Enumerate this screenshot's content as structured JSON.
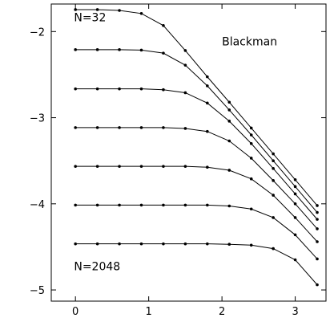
{
  "chart_data": {
    "type": "line",
    "title": "",
    "xlabel": "",
    "ylabel": "",
    "xlim": [
      -0.33,
      3.42
    ],
    "ylim": [
      -5.13,
      -1.68
    ],
    "xticks": [
      0,
      1,
      2,
      3
    ],
    "yticks": [
      -2,
      -3,
      -4,
      -5
    ],
    "grid": false,
    "annotations": [
      {
        "text": "Blackman",
        "x": 2.0,
        "y": -2.16
      },
      {
        "text": "N=32",
        "x": -0.02,
        "y": -1.88
      },
      {
        "text": "N=2048",
        "x": -0.02,
        "y": -4.77
      }
    ],
    "x": [
      0,
      0.3,
      0.6,
      0.9,
      1.2,
      1.5,
      1.8,
      2.1,
      2.4,
      2.7,
      3.0,
      3.3
    ],
    "series": [
      {
        "values": [
          -1.745,
          -1.745,
          -1.755,
          -1.79,
          -1.93,
          -2.22,
          -2.525,
          -2.82,
          -3.12,
          -3.42,
          -3.72,
          -4.02
        ]
      },
      {
        "values": [
          -2.21,
          -2.21,
          -2.21,
          -2.215,
          -2.25,
          -2.39,
          -2.63,
          -2.91,
          -3.2,
          -3.5,
          -3.8,
          -4.1
        ]
      },
      {
        "values": [
          -2.665,
          -2.665,
          -2.665,
          -2.665,
          -2.675,
          -2.71,
          -2.83,
          -3.04,
          -3.3,
          -3.59,
          -3.885,
          -4.18
        ]
      },
      {
        "values": [
          -3.115,
          -3.115,
          -3.115,
          -3.115,
          -3.115,
          -3.125,
          -3.16,
          -3.27,
          -3.47,
          -3.73,
          -4.0,
          -4.29
        ]
      },
      {
        "values": [
          -3.565,
          -3.565,
          -3.565,
          -3.565,
          -3.565,
          -3.565,
          -3.575,
          -3.61,
          -3.71,
          -3.9,
          -4.16,
          -4.44
        ]
      },
      {
        "values": [
          -4.015,
          -4.015,
          -4.015,
          -4.015,
          -4.015,
          -4.015,
          -4.015,
          -4.025,
          -4.06,
          -4.16,
          -4.36,
          -4.64
        ]
      },
      {
        "values": [
          -4.465,
          -4.465,
          -4.465,
          -4.465,
          -4.465,
          -4.465,
          -4.465,
          -4.47,
          -4.48,
          -4.52,
          -4.65,
          -4.94
        ]
      }
    ]
  }
}
